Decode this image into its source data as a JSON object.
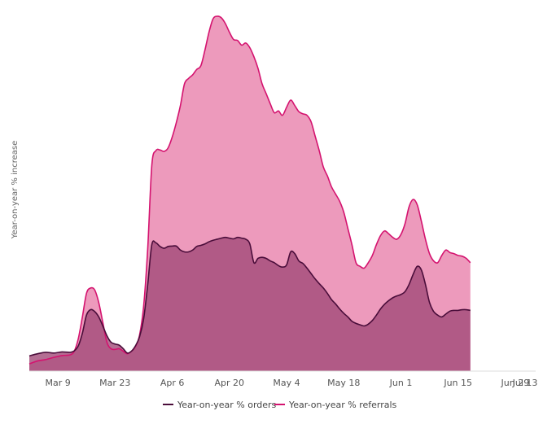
{
  "chart_data": {
    "type": "area",
    "title": "",
    "xlabel": "",
    "ylabel": "Year-on-year % increase",
    "x_range": [
      0,
      123
    ],
    "ylim": [
      0,
      1000
    ],
    "x_ticks": [
      {
        "label": "Mar 9",
        "x": 7
      },
      {
        "label": "Mar 23",
        "x": 21
      },
      {
        "label": "Apr 6",
        "x": 35
      },
      {
        "label": "Apr 20",
        "x": 49
      },
      {
        "label": "May 4",
        "x": 63
      },
      {
        "label": "May 18",
        "x": 77
      },
      {
        "label": "Jun 1",
        "x": 91
      },
      {
        "label": "Jun 15",
        "x": 105
      },
      {
        "label": "Jun 29",
        "x": 119
      },
      {
        "label": "Jul 13",
        "x": 133
      }
    ],
    "grid": false,
    "legend_position": "bottom",
    "series": [
      {
        "name": "Year-on-year % orders",
        "stroke": "#4a0d3a",
        "fill": "#a14a78",
        "fill_opacity": 0.8,
        "points": [
          [
            0,
            42
          ],
          [
            2,
            48
          ],
          [
            4,
            52
          ],
          [
            6,
            50
          ],
          [
            8,
            53
          ],
          [
            10,
            52
          ],
          [
            11,
            56
          ],
          [
            12,
            70
          ],
          [
            13,
            105
          ],
          [
            14,
            155
          ],
          [
            15,
            170
          ],
          [
            16,
            165
          ],
          [
            17,
            150
          ],
          [
            18,
            125
          ],
          [
            19,
            98
          ],
          [
            20,
            80
          ],
          [
            21,
            75
          ],
          [
            22,
            72
          ],
          [
            23,
            62
          ],
          [
            24,
            50
          ],
          [
            25,
            55
          ],
          [
            26,
            70
          ],
          [
            27,
            95
          ],
          [
            28,
            145
          ],
          [
            29,
            240
          ],
          [
            30,
            350
          ],
          [
            31,
            355
          ],
          [
            32,
            345
          ],
          [
            33,
            340
          ],
          [
            34,
            345
          ],
          [
            35,
            346
          ],
          [
            36,
            346
          ],
          [
            37,
            335
          ],
          [
            38,
            330
          ],
          [
            39,
            330
          ],
          [
            40,
            335
          ],
          [
            41,
            345
          ],
          [
            42,
            348
          ],
          [
            43,
            352
          ],
          [
            44,
            358
          ],
          [
            45,
            362
          ],
          [
            46,
            365
          ],
          [
            47,
            368
          ],
          [
            48,
            370
          ],
          [
            49,
            368
          ],
          [
            50,
            366
          ],
          [
            51,
            370
          ],
          [
            52,
            368
          ],
          [
            53,
            365
          ],
          [
            54,
            352
          ],
          [
            55,
            300
          ],
          [
            56,
            312
          ],
          [
            57,
            315
          ],
          [
            58,
            312
          ],
          [
            59,
            305
          ],
          [
            60,
            300
          ],
          [
            61,
            292
          ],
          [
            62,
            288
          ],
          [
            63,
            294
          ],
          [
            64,
            330
          ],
          [
            65,
            325
          ],
          [
            66,
            305
          ],
          [
            67,
            298
          ],
          [
            68,
            285
          ],
          [
            69,
            270
          ],
          [
            70,
            255
          ],
          [
            71,
            242
          ],
          [
            72,
            230
          ],
          [
            73,
            215
          ],
          [
            74,
            198
          ],
          [
            75,
            186
          ],
          [
            76,
            172
          ],
          [
            77,
            160
          ],
          [
            78,
            150
          ],
          [
            79,
            138
          ],
          [
            80,
            132
          ],
          [
            81,
            128
          ],
          [
            82,
            125
          ],
          [
            83,
            130
          ],
          [
            84,
            140
          ],
          [
            85,
            155
          ],
          [
            86,
            172
          ],
          [
            87,
            185
          ],
          [
            88,
            195
          ],
          [
            89,
            203
          ],
          [
            90,
            208
          ],
          [
            91,
            212
          ],
          [
            92,
            220
          ],
          [
            93,
            240
          ],
          [
            94,
            268
          ],
          [
            95,
            290
          ],
          [
            96,
            280
          ],
          [
            97,
            240
          ],
          [
            98,
            190
          ],
          [
            99,
            165
          ],
          [
            100,
            155
          ],
          [
            101,
            150
          ],
          [
            102,
            158
          ],
          [
            103,
            166
          ],
          [
            104,
            168
          ],
          [
            105,
            168
          ],
          [
            106,
            170
          ],
          [
            107,
            170
          ],
          [
            108,
            168
          ]
        ]
      },
      {
        "name": "Year-on-year % referrals",
        "stroke": "#d4136f",
        "fill": "#eb8fb5",
        "fill_opacity": 0.9,
        "points": [
          [
            0,
            20
          ],
          [
            2,
            28
          ],
          [
            4,
            32
          ],
          [
            6,
            38
          ],
          [
            8,
            43
          ],
          [
            10,
            45
          ],
          [
            11,
            55
          ],
          [
            12,
            90
          ],
          [
            13,
            150
          ],
          [
            14,
            215
          ],
          [
            15,
            230
          ],
          [
            16,
            225
          ],
          [
            17,
            190
          ],
          [
            18,
            135
          ],
          [
            19,
            80
          ],
          [
            20,
            62
          ],
          [
            21,
            60
          ],
          [
            22,
            62
          ],
          [
            23,
            55
          ],
          [
            24,
            48
          ],
          [
            25,
            55
          ],
          [
            26,
            68
          ],
          [
            27,
            100
          ],
          [
            28,
            180
          ],
          [
            29,
            340
          ],
          [
            30,
            570
          ],
          [
            31,
            610
          ],
          [
            32,
            612
          ],
          [
            33,
            608
          ],
          [
            34,
            618
          ],
          [
            35,
            648
          ],
          [
            36,
            688
          ],
          [
            37,
            735
          ],
          [
            38,
            795
          ],
          [
            39,
            810
          ],
          [
            40,
            820
          ],
          [
            41,
            835
          ],
          [
            42,
            845
          ],
          [
            43,
            888
          ],
          [
            44,
            938
          ],
          [
            45,
            975
          ],
          [
            46,
            982
          ],
          [
            47,
            978
          ],
          [
            48,
            962
          ],
          [
            49,
            938
          ],
          [
            50,
            918
          ],
          [
            51,
            915
          ],
          [
            52,
            902
          ],
          [
            53,
            908
          ],
          [
            54,
            895
          ],
          [
            55,
            870
          ],
          [
            56,
            838
          ],
          [
            57,
            795
          ],
          [
            58,
            768
          ],
          [
            59,
            740
          ],
          [
            60,
            715
          ],
          [
            61,
            720
          ],
          [
            62,
            708
          ],
          [
            63,
            730
          ],
          [
            64,
            750
          ],
          [
            65,
            735
          ],
          [
            66,
            718
          ],
          [
            67,
            712
          ],
          [
            68,
            708
          ],
          [
            69,
            690
          ],
          [
            70,
            650
          ],
          [
            71,
            610
          ],
          [
            72,
            565
          ],
          [
            73,
            540
          ],
          [
            74,
            510
          ],
          [
            75,
            490
          ],
          [
            76,
            470
          ],
          [
            77,
            440
          ],
          [
            78,
            395
          ],
          [
            79,
            350
          ],
          [
            80,
            300
          ],
          [
            81,
            290
          ],
          [
            82,
            285
          ],
          [
            83,
            300
          ],
          [
            84,
            320
          ],
          [
            85,
            350
          ],
          [
            86,
            375
          ],
          [
            87,
            388
          ],
          [
            88,
            380
          ],
          [
            89,
            370
          ],
          [
            90,
            365
          ],
          [
            91,
            378
          ],
          [
            92,
            408
          ],
          [
            93,
            455
          ],
          [
            94,
            475
          ],
          [
            95,
            460
          ],
          [
            96,
            415
          ],
          [
            97,
            365
          ],
          [
            98,
            325
          ],
          [
            99,
            305
          ],
          [
            100,
            300
          ],
          [
            101,
            320
          ],
          [
            102,
            335
          ],
          [
            103,
            328
          ],
          [
            104,
            325
          ],
          [
            105,
            320
          ],
          [
            106,
            318
          ],
          [
            107,
            312
          ],
          [
            108,
            300
          ]
        ]
      }
    ]
  }
}
